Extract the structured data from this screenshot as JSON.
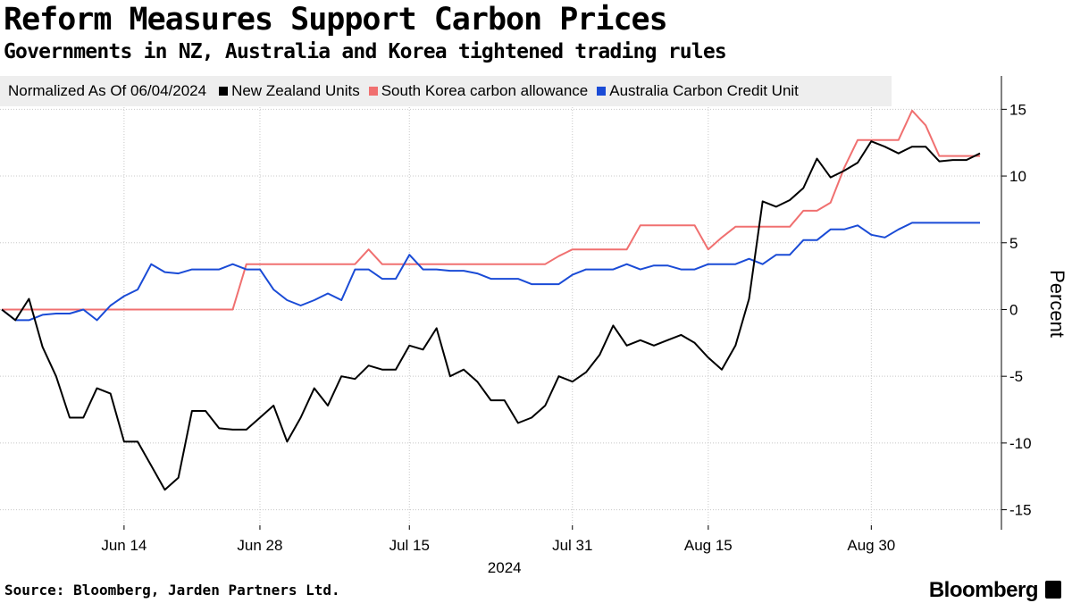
{
  "header": {
    "title": "Reform Measures Support Carbon Prices",
    "subtitle": "Governments in NZ, Australia and Korea tightened trading rules"
  },
  "legend": {
    "note": "Normalized As Of 06/04/2024"
  },
  "footer": {
    "source": "Source: Bloomberg, Jarden Partners Ltd.",
    "brand": "Bloomberg"
  },
  "chart_data": {
    "type": "line",
    "title": "Reform Measures Support Carbon Prices",
    "subtitle": "Governments in NZ, Australia and Korea tightened trading rules",
    "xlabel": "2024",
    "ylabel": "Percent",
    "ylim": [
      -16.5,
      17.5
    ],
    "yticks": [
      15,
      10,
      5,
      0,
      -5,
      -10,
      -15
    ],
    "ytick_labels": [
      "15",
      "10",
      "5",
      "0",
      "-5",
      "-10",
      "-15"
    ],
    "xlim": [
      0,
      72
    ],
    "xticks": [
      9,
      19,
      30,
      42,
      52,
      64
    ],
    "xtick_labels": [
      "Jun 14",
      "Jun 28",
      "Jul 15",
      "Jul 31",
      "Aug 15",
      "Aug 30"
    ],
    "x_year_label": "2024",
    "x_year_position": 37,
    "grid": "dotted",
    "legend_position": "top",
    "series": [
      {
        "name": "New Zealand Units",
        "color": "#000000",
        "values": [
          0,
          -0.8,
          0.8,
          -2.8,
          -5,
          -8.1,
          -8.1,
          -5.9,
          -6.3,
          -9.9,
          -9.9,
          -11.7,
          -13.5,
          -12.6,
          -7.6,
          -7.6,
          -8.9,
          -9,
          -9,
          -8.1,
          -7.2,
          -9.9,
          -8.1,
          -5.9,
          -7.2,
          -5,
          -5.2,
          -4.2,
          -4.5,
          -4.5,
          -2.7,
          -3,
          -1.4,
          -5,
          -4.5,
          -5.4,
          -6.8,
          -6.8,
          -8.5,
          -8.1,
          -7.2,
          -5,
          -5.4,
          -4.7,
          -3.4,
          -1.2,
          -2.7,
          -2.3,
          -2.7,
          -2.3,
          -1.9,
          -2.5,
          -3.6,
          -4.5,
          -2.7,
          0.8,
          8.1,
          7.7,
          8.2,
          9.1,
          11.3,
          9.9,
          10.4,
          11,
          12.6,
          12.2,
          11.7,
          12.2,
          12.2,
          11.1,
          11.2,
          11.2,
          11.7
        ]
      },
      {
        "name": "South Korea carbon allowance",
        "color": "#f07070",
        "values": [
          0,
          0,
          0,
          0,
          0,
          0,
          0,
          0,
          0,
          0,
          0,
          0,
          0,
          0,
          0,
          0,
          0,
          0,
          3.4,
          3.4,
          3.4,
          3.4,
          3.4,
          3.4,
          3.4,
          3.4,
          3.4,
          4.5,
          3.4,
          3.4,
          3.4,
          3.4,
          3.4,
          3.4,
          3.4,
          3.4,
          3.4,
          3.4,
          3.4,
          3.4,
          3.4,
          4,
          4.5,
          4.5,
          4.5,
          4.5,
          4.5,
          6.3,
          6.3,
          6.3,
          6.3,
          6.3,
          4.5,
          5.4,
          6.2,
          6.2,
          6.2,
          6.2,
          6.2,
          7.4,
          7.4,
          8,
          10.6,
          12.7,
          12.7,
          12.7,
          12.7,
          14.9,
          13.8,
          11.5,
          11.5,
          11.5,
          11.5
        ]
      },
      {
        "name": "Australia Carbon Credit Unit",
        "color": "#1a4bd6",
        "values": [
          0,
          -0.8,
          -0.8,
          -0.4,
          -0.3,
          -0.3,
          0,
          -0.8,
          0.3,
          1,
          1.5,
          3.4,
          2.8,
          2.7,
          3,
          3,
          3,
          3.4,
          3,
          3,
          1.5,
          0.7,
          0.3,
          0.7,
          1.2,
          0.7,
          3,
          3,
          2.3,
          2.3,
          4.1,
          3,
          3,
          2.9,
          2.9,
          2.7,
          2.3,
          2.3,
          2.3,
          1.9,
          1.9,
          1.9,
          2.6,
          3,
          3,
          3,
          3.4,
          3,
          3.3,
          3.3,
          3,
          3,
          3.4,
          3.4,
          3.4,
          3.8,
          3.4,
          4.1,
          4.1,
          5.2,
          5.2,
          6,
          6,
          6.3,
          5.6,
          5.4,
          6,
          6.5,
          6.5,
          6.5,
          6.5,
          6.5,
          6.5
        ]
      }
    ]
  }
}
